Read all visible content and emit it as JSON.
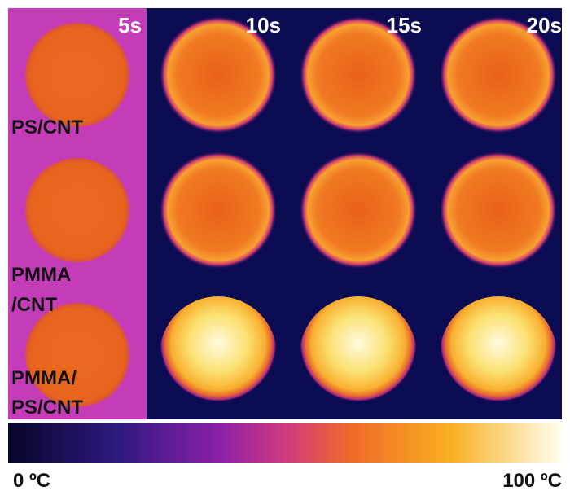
{
  "columns": [
    "5s",
    "10s",
    "15s",
    "20s"
  ],
  "rows": [
    [
      "PS/CNT"
    ],
    [
      "PMMA",
      "/CNT"
    ],
    [
      "PMMA/",
      "PS/CNT"
    ]
  ],
  "colorbar": {
    "min_label": "0 ºC",
    "max_label": "100 ºC"
  }
}
